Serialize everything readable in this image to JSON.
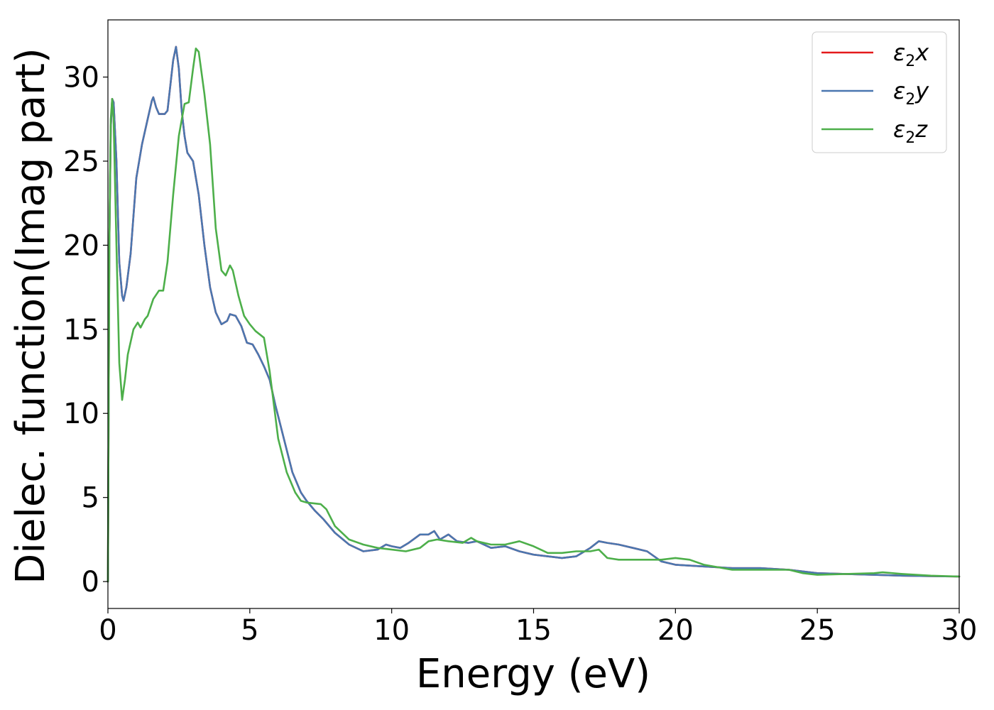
{
  "chart_data": {
    "type": "line",
    "xlabel": "Energy (eV)",
    "ylabel": "Dielec. function(Imag part)",
    "xlim": [
      0,
      30
    ],
    "ylim": [
      -1.6,
      33.4
    ],
    "grid": false,
    "legend_position": "top-right",
    "x_ticks": [
      0,
      5,
      10,
      15,
      20,
      25,
      30
    ],
    "y_ticks": [
      0,
      5,
      10,
      15,
      20,
      25,
      30
    ],
    "series": [
      {
        "name": "ε₂x",
        "legend_base": "ε",
        "legend_sub": "2",
        "legend_var": "x",
        "color": "#e41a1c",
        "points": [
          [
            0,
            0
          ],
          [
            0.05,
            20
          ],
          [
            0.1,
            27
          ],
          [
            0.15,
            28.7
          ],
          [
            0.2,
            28.5
          ],
          [
            0.3,
            25
          ],
          [
            0.4,
            19
          ],
          [
            0.5,
            17
          ],
          [
            0.55,
            16.7
          ],
          [
            0.65,
            17.5
          ],
          [
            0.8,
            19.5
          ],
          [
            1.0,
            24
          ],
          [
            1.2,
            26
          ],
          [
            1.4,
            27.5
          ],
          [
            1.55,
            28.6
          ],
          [
            1.6,
            28.8
          ],
          [
            1.7,
            28.2
          ],
          [
            1.8,
            27.8
          ],
          [
            2.0,
            27.8
          ],
          [
            2.1,
            28
          ],
          [
            2.2,
            29.5
          ],
          [
            2.3,
            31
          ],
          [
            2.4,
            31.8
          ],
          [
            2.5,
            30.5
          ],
          [
            2.6,
            28
          ],
          [
            2.7,
            26.5
          ],
          [
            2.8,
            25.5
          ],
          [
            3.0,
            25
          ],
          [
            3.2,
            23
          ],
          [
            3.4,
            20
          ],
          [
            3.6,
            17.5
          ],
          [
            3.8,
            16
          ],
          [
            4.0,
            15.3
          ],
          [
            4.2,
            15.5
          ],
          [
            4.3,
            15.9
          ],
          [
            4.5,
            15.8
          ],
          [
            4.7,
            15.2
          ],
          [
            4.9,
            14.2
          ],
          [
            5.1,
            14.1
          ],
          [
            5.3,
            13.5
          ],
          [
            5.5,
            12.8
          ],
          [
            5.7,
            12
          ],
          [
            5.9,
            10.5
          ],
          [
            6.2,
            8.5
          ],
          [
            6.5,
            6.5
          ],
          [
            6.8,
            5.3
          ],
          [
            7.0,
            4.8
          ],
          [
            7.3,
            4.2
          ],
          [
            7.6,
            3.7
          ],
          [
            8.0,
            2.9
          ],
          [
            8.5,
            2.2
          ],
          [
            9.0,
            1.8
          ],
          [
            9.5,
            1.9
          ],
          [
            9.8,
            2.2
          ],
          [
            10.0,
            2.1
          ],
          [
            10.3,
            2.0
          ],
          [
            10.6,
            2.3
          ],
          [
            11.0,
            2.8
          ],
          [
            11.3,
            2.8
          ],
          [
            11.5,
            3.0
          ],
          [
            11.7,
            2.5
          ],
          [
            12.0,
            2.8
          ],
          [
            12.3,
            2.4
          ],
          [
            12.7,
            2.3
          ],
          [
            13.0,
            2.4
          ],
          [
            13.5,
            2.0
          ],
          [
            14.0,
            2.1
          ],
          [
            14.5,
            1.8
          ],
          [
            15.0,
            1.6
          ],
          [
            15.5,
            1.5
          ],
          [
            16.0,
            1.4
          ],
          [
            16.5,
            1.5
          ],
          [
            17.0,
            2.0
          ],
          [
            17.3,
            2.4
          ],
          [
            17.6,
            2.3
          ],
          [
            18.0,
            2.2
          ],
          [
            18.5,
            2.0
          ],
          [
            19.0,
            1.8
          ],
          [
            19.5,
            1.2
          ],
          [
            20.0,
            1.0
          ],
          [
            21.0,
            0.9
          ],
          [
            22.0,
            0.8
          ],
          [
            23.0,
            0.8
          ],
          [
            24.0,
            0.7
          ],
          [
            25.0,
            0.5
          ],
          [
            26.0,
            0.45
          ],
          [
            27.0,
            0.4
          ],
          [
            28.0,
            0.35
          ],
          [
            29.0,
            0.32
          ],
          [
            30.0,
            0.3
          ]
        ]
      },
      {
        "name": "ε₂y",
        "legend_base": "ε",
        "legend_sub": "2",
        "legend_var": "y",
        "color": "#4a77b0",
        "points": [
          [
            0,
            0
          ],
          [
            0.05,
            20
          ],
          [
            0.1,
            27
          ],
          [
            0.15,
            28.7
          ],
          [
            0.2,
            28.5
          ],
          [
            0.3,
            25
          ],
          [
            0.4,
            19
          ],
          [
            0.5,
            17
          ],
          [
            0.55,
            16.7
          ],
          [
            0.65,
            17.5
          ],
          [
            0.8,
            19.5
          ],
          [
            1.0,
            24
          ],
          [
            1.2,
            26
          ],
          [
            1.4,
            27.5
          ],
          [
            1.55,
            28.6
          ],
          [
            1.6,
            28.8
          ],
          [
            1.7,
            28.2
          ],
          [
            1.8,
            27.8
          ],
          [
            2.0,
            27.8
          ],
          [
            2.1,
            28
          ],
          [
            2.2,
            29.5
          ],
          [
            2.3,
            31
          ],
          [
            2.4,
            31.8
          ],
          [
            2.5,
            30.5
          ],
          [
            2.6,
            28
          ],
          [
            2.7,
            26.5
          ],
          [
            2.8,
            25.5
          ],
          [
            3.0,
            25
          ],
          [
            3.2,
            23
          ],
          [
            3.4,
            20
          ],
          [
            3.6,
            17.5
          ],
          [
            3.8,
            16
          ],
          [
            4.0,
            15.3
          ],
          [
            4.2,
            15.5
          ],
          [
            4.3,
            15.9
          ],
          [
            4.5,
            15.8
          ],
          [
            4.7,
            15.2
          ],
          [
            4.9,
            14.2
          ],
          [
            5.1,
            14.1
          ],
          [
            5.3,
            13.5
          ],
          [
            5.5,
            12.8
          ],
          [
            5.7,
            12
          ],
          [
            5.9,
            10.5
          ],
          [
            6.2,
            8.5
          ],
          [
            6.5,
            6.5
          ],
          [
            6.8,
            5.3
          ],
          [
            7.0,
            4.8
          ],
          [
            7.3,
            4.2
          ],
          [
            7.6,
            3.7
          ],
          [
            8.0,
            2.9
          ],
          [
            8.5,
            2.2
          ],
          [
            9.0,
            1.8
          ],
          [
            9.5,
            1.9
          ],
          [
            9.8,
            2.2
          ],
          [
            10.0,
            2.1
          ],
          [
            10.3,
            2.0
          ],
          [
            10.6,
            2.3
          ],
          [
            11.0,
            2.8
          ],
          [
            11.3,
            2.8
          ],
          [
            11.5,
            3.0
          ],
          [
            11.7,
            2.5
          ],
          [
            12.0,
            2.8
          ],
          [
            12.3,
            2.4
          ],
          [
            12.7,
            2.3
          ],
          [
            13.0,
            2.4
          ],
          [
            13.5,
            2.0
          ],
          [
            14.0,
            2.1
          ],
          [
            14.5,
            1.8
          ],
          [
            15.0,
            1.6
          ],
          [
            15.5,
            1.5
          ],
          [
            16.0,
            1.4
          ],
          [
            16.5,
            1.5
          ],
          [
            17.0,
            2.0
          ],
          [
            17.3,
            2.4
          ],
          [
            17.6,
            2.3
          ],
          [
            18.0,
            2.2
          ],
          [
            18.5,
            2.0
          ],
          [
            19.0,
            1.8
          ],
          [
            19.5,
            1.2
          ],
          [
            20.0,
            1.0
          ],
          [
            21.0,
            0.9
          ],
          [
            22.0,
            0.8
          ],
          [
            23.0,
            0.8
          ],
          [
            24.0,
            0.7
          ],
          [
            25.0,
            0.5
          ],
          [
            26.0,
            0.45
          ],
          [
            27.0,
            0.4
          ],
          [
            28.0,
            0.35
          ],
          [
            29.0,
            0.32
          ],
          [
            30.0,
            0.3
          ]
        ]
      },
      {
        "name": "ε₂z",
        "legend_base": "ε",
        "legend_sub": "2",
        "legend_var": "z",
        "color": "#4daf4a",
        "points": [
          [
            0,
            0
          ],
          [
            0.05,
            20
          ],
          [
            0.1,
            27.5
          ],
          [
            0.15,
            28.7
          ],
          [
            0.2,
            27.5
          ],
          [
            0.3,
            20
          ],
          [
            0.4,
            13
          ],
          [
            0.5,
            10.8
          ],
          [
            0.6,
            12
          ],
          [
            0.7,
            13.5
          ],
          [
            0.9,
            15
          ],
          [
            1.05,
            15.4
          ],
          [
            1.15,
            15.1
          ],
          [
            1.3,
            15.6
          ],
          [
            1.4,
            15.8
          ],
          [
            1.6,
            16.8
          ],
          [
            1.8,
            17.3
          ],
          [
            1.95,
            17.3
          ],
          [
            2.1,
            19
          ],
          [
            2.3,
            23
          ],
          [
            2.5,
            26.5
          ],
          [
            2.7,
            28.4
          ],
          [
            2.85,
            28.5
          ],
          [
            3.0,
            30.5
          ],
          [
            3.1,
            31.7
          ],
          [
            3.2,
            31.5
          ],
          [
            3.4,
            29
          ],
          [
            3.6,
            26
          ],
          [
            3.8,
            21
          ],
          [
            4.0,
            18.5
          ],
          [
            4.15,
            18.2
          ],
          [
            4.3,
            18.8
          ],
          [
            4.4,
            18.5
          ],
          [
            4.6,
            17
          ],
          [
            4.8,
            15.8
          ],
          [
            5.0,
            15.3
          ],
          [
            5.2,
            14.9
          ],
          [
            5.5,
            14.5
          ],
          [
            5.7,
            12.5
          ],
          [
            6.0,
            8.5
          ],
          [
            6.3,
            6.5
          ],
          [
            6.6,
            5.3
          ],
          [
            6.8,
            4.8
          ],
          [
            7.0,
            4.7
          ],
          [
            7.5,
            4.6
          ],
          [
            7.7,
            4.3
          ],
          [
            8.0,
            3.3
          ],
          [
            8.5,
            2.5
          ],
          [
            9.0,
            2.2
          ],
          [
            9.5,
            2.0
          ],
          [
            10.0,
            1.9
          ],
          [
            10.5,
            1.8
          ],
          [
            11.0,
            2.0
          ],
          [
            11.3,
            2.4
          ],
          [
            11.6,
            2.5
          ],
          [
            12.0,
            2.4
          ],
          [
            12.5,
            2.3
          ],
          [
            12.8,
            2.6
          ],
          [
            13.0,
            2.4
          ],
          [
            13.5,
            2.2
          ],
          [
            14.0,
            2.2
          ],
          [
            14.5,
            2.4
          ],
          [
            15.0,
            2.1
          ],
          [
            15.5,
            1.7
          ],
          [
            16.0,
            1.7
          ],
          [
            16.5,
            1.8
          ],
          [
            17.0,
            1.8
          ],
          [
            17.3,
            1.9
          ],
          [
            17.6,
            1.4
          ],
          [
            18.0,
            1.3
          ],
          [
            18.5,
            1.3
          ],
          [
            19.0,
            1.3
          ],
          [
            19.5,
            1.3
          ],
          [
            20.0,
            1.4
          ],
          [
            20.5,
            1.3
          ],
          [
            21.0,
            1.0
          ],
          [
            22.0,
            0.7
          ],
          [
            23.0,
            0.7
          ],
          [
            24.0,
            0.7
          ],
          [
            24.5,
            0.5
          ],
          [
            25.0,
            0.4
          ],
          [
            26.0,
            0.45
          ],
          [
            27.0,
            0.5
          ],
          [
            27.3,
            0.55
          ],
          [
            28.0,
            0.45
          ],
          [
            29.0,
            0.35
          ],
          [
            30.0,
            0.3
          ]
        ]
      }
    ]
  }
}
